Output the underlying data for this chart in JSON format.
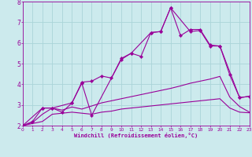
{
  "xlabel": "Windchill (Refroidissement éolien,°C)",
  "xlim": [
    0,
    23
  ],
  "ylim": [
    2,
    8
  ],
  "yticks": [
    2,
    3,
    4,
    5,
    6,
    7,
    8
  ],
  "xticks": [
    0,
    1,
    2,
    3,
    4,
    5,
    6,
    7,
    8,
    9,
    10,
    11,
    12,
    13,
    14,
    15,
    16,
    17,
    18,
    19,
    20,
    21,
    22,
    23
  ],
  "bg_color": "#cceaed",
  "grid_color": "#aad4d8",
  "line_color": "#990099",
  "lines": [
    {
      "x": [
        0,
        1,
        2,
        3,
        4,
        5,
        6,
        7,
        8,
        9,
        10,
        11,
        12,
        13,
        14,
        15,
        16,
        17,
        18,
        19,
        20,
        21,
        22,
        23
      ],
      "y": [
        2.0,
        2.1,
        2.2,
        2.55,
        2.6,
        2.65,
        2.6,
        2.55,
        2.65,
        2.7,
        2.8,
        2.85,
        2.9,
        2.95,
        3.0,
        3.05,
        3.1,
        3.15,
        3.2,
        3.25,
        3.3,
        2.85,
        2.65,
        2.62
      ],
      "marker": null,
      "lw": 0.8
    },
    {
      "x": [
        0,
        1,
        2,
        3,
        4,
        5,
        6,
        7,
        8,
        9,
        10,
        11,
        12,
        13,
        14,
        15,
        16,
        17,
        18,
        19,
        20,
        21,
        22,
        23
      ],
      "y": [
        2.0,
        2.15,
        2.55,
        2.85,
        2.75,
        2.9,
        2.8,
        2.95,
        3.1,
        3.2,
        3.3,
        3.4,
        3.5,
        3.6,
        3.7,
        3.8,
        3.92,
        4.05,
        4.15,
        4.25,
        4.38,
        3.38,
        2.92,
        2.65
      ],
      "marker": null,
      "lw": 0.8
    },
    {
      "x": [
        0,
        1,
        2,
        3,
        4,
        5,
        6,
        7,
        8,
        9,
        10,
        11,
        12,
        13,
        14,
        15,
        16,
        17,
        18,
        19,
        20,
        21,
        22,
        23
      ],
      "y": [
        2.0,
        2.2,
        2.85,
        2.85,
        2.65,
        3.1,
        4.1,
        4.15,
        4.4,
        4.3,
        5.25,
        5.5,
        5.35,
        6.5,
        6.55,
        7.7,
        6.35,
        6.65,
        6.65,
        5.9,
        5.85,
        4.45,
        3.35,
        3.42
      ],
      "marker": "D",
      "markersize": 2.2,
      "lw": 0.8
    },
    {
      "x": [
        0,
        2,
        3,
        5,
        6,
        7,
        10,
        11,
        13,
        14,
        15,
        17,
        18,
        19,
        20,
        22,
        23
      ],
      "y": [
        2.0,
        2.85,
        2.85,
        3.1,
        4.05,
        2.5,
        5.2,
        5.5,
        6.5,
        6.55,
        7.7,
        6.55,
        6.6,
        5.85,
        5.85,
        3.35,
        3.42
      ],
      "marker": "D",
      "markersize": 2.2,
      "lw": 0.8
    }
  ]
}
